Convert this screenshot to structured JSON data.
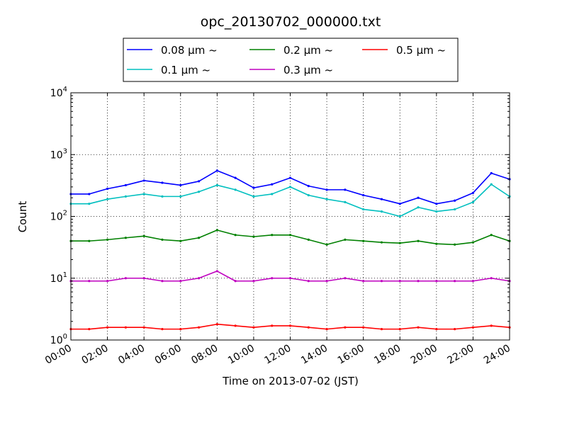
{
  "chart_data": {
    "type": "line",
    "title": "opc_20130702_000000.txt",
    "xlabel": "Time on 2013-07-02 (JST)",
    "ylabel": "Count",
    "yscale": "log",
    "xlim": [
      "00:00",
      "24:00"
    ],
    "ylim": [
      1,
      10000
    ],
    "grid": true,
    "legend_placement": "top (above plot)",
    "x_ticks": [
      "00:00",
      "02:00",
      "04:00",
      "06:00",
      "08:00",
      "10:00",
      "12:00",
      "14:00",
      "16:00",
      "18:00",
      "20:00",
      "22:00",
      "24:00"
    ],
    "y_ticks": [
      {
        "base": "10",
        "exp": "0",
        "value": 1
      },
      {
        "base": "10",
        "exp": "1",
        "value": 10
      },
      {
        "base": "10",
        "exp": "2",
        "value": 100
      },
      {
        "base": "10",
        "exp": "3",
        "value": 1000
      },
      {
        "base": "10",
        "exp": "4",
        "value": 10000
      }
    ],
    "x": [
      "00:00",
      "01:00",
      "02:00",
      "03:00",
      "04:00",
      "05:00",
      "06:00",
      "07:00",
      "08:00",
      "09:00",
      "10:00",
      "11:00",
      "12:00",
      "13:00",
      "14:00",
      "15:00",
      "16:00",
      "17:00",
      "18:00",
      "19:00",
      "20:00",
      "21:00",
      "22:00",
      "23:00",
      "24:00"
    ],
    "series": [
      {
        "name": "0.08 μm ~",
        "color": "#0000ff",
        "values": [
          230,
          230,
          280,
          320,
          380,
          350,
          320,
          370,
          550,
          420,
          290,
          330,
          420,
          310,
          270,
          270,
          220,
          190,
          160,
          200,
          160,
          180,
          240,
          500,
          400
        ]
      },
      {
        "name": "0.1 μm ~",
        "color": "#00bfbf",
        "values": [
          160,
          160,
          190,
          210,
          230,
          210,
          210,
          250,
          320,
          270,
          210,
          230,
          300,
          220,
          190,
          170,
          130,
          120,
          100,
          140,
          120,
          130,
          170,
          330,
          210
        ]
      },
      {
        "name": "0.2 μm ~",
        "color": "#008000",
        "values": [
          40,
          40,
          42,
          45,
          48,
          42,
          40,
          45,
          60,
          50,
          47,
          50,
          50,
          42,
          35,
          42,
          40,
          38,
          37,
          40,
          36,
          35,
          38,
          50,
          40
        ]
      },
      {
        "name": "0.3 μm ~",
        "color": "#bf00bf",
        "values": [
          9,
          9,
          9,
          10,
          10,
          9,
          9,
          10,
          13,
          9,
          9,
          10,
          10,
          9,
          9,
          10,
          9,
          9,
          9,
          9,
          9,
          9,
          9,
          10,
          9
        ]
      },
      {
        "name": "0.5 μm ~",
        "color": "#ff0000",
        "values": [
          1.5,
          1.5,
          1.6,
          1.6,
          1.6,
          1.5,
          1.5,
          1.6,
          1.8,
          1.7,
          1.6,
          1.7,
          1.7,
          1.6,
          1.5,
          1.6,
          1.6,
          1.5,
          1.5,
          1.6,
          1.5,
          1.5,
          1.6,
          1.7,
          1.6
        ]
      }
    ]
  }
}
